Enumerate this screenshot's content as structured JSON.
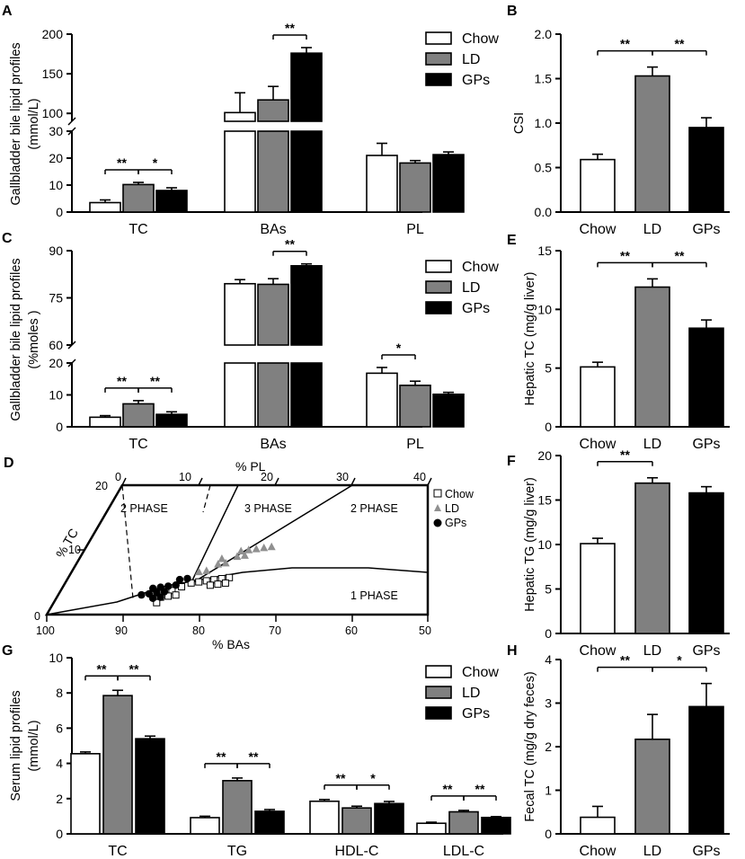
{
  "figure": {
    "legend": [
      "Chow",
      "LD",
      "GPs"
    ],
    "colors": {
      "Chow": "#ffffff",
      "LD": "#808080",
      "GPs": "#000000",
      "ink": "#000000"
    }
  },
  "chart_data": [
    {
      "panel": "A",
      "type": "bar",
      "broken_axis": true,
      "ylabel": [
        "Gallbladder bile lipid profiles",
        "(mmol/L)"
      ],
      "categories": [
        "TC",
        "BAs",
        "PL"
      ],
      "series": [
        {
          "name": "Chow",
          "values": [
            3.5,
            101,
            21
          ],
          "errors": [
            1,
            25,
            4.5
          ]
        },
        {
          "name": "LD",
          "values": [
            10.2,
            117,
            18.2
          ],
          "errors": [
            0.8,
            17,
            0.9
          ]
        },
        {
          "name": "GPs",
          "values": [
            8,
            176,
            21.3
          ],
          "errors": [
            1,
            7,
            1
          ]
        }
      ],
      "y_segments": [
        {
          "range": [
            0,
            30
          ],
          "ticks": [
            "0",
            "10",
            "20",
            "30"
          ]
        },
        {
          "range": [
            90,
            200
          ],
          "ticks": [
            "100",
            "150",
            "200"
          ]
        }
      ],
      "significance": [
        {
          "text": "**",
          "category": "TC",
          "between": [
            "Chow",
            "LD"
          ]
        },
        {
          "text": "*",
          "category": "TC",
          "between": [
            "LD",
            "GPs"
          ]
        },
        {
          "text": "**",
          "category": "BAs",
          "between": [
            "LD",
            "GPs"
          ]
        }
      ]
    },
    {
      "panel": "B",
      "type": "bar",
      "ylabel": [
        "CSI"
      ],
      "categories": [
        "Chow",
        "LD",
        "GPs"
      ],
      "values": [
        0.59,
        1.53,
        0.95
      ],
      "errors": [
        0.06,
        0.1,
        0.11
      ],
      "ylim": [
        0,
        2.0
      ],
      "yticks": [
        "0.0",
        "0.5",
        "1.0",
        "1.5",
        "2.0"
      ],
      "significance": [
        {
          "text": "**",
          "between": [
            "Chow",
            "LD"
          ]
        },
        {
          "text": "**",
          "between": [
            "LD",
            "GPs"
          ]
        }
      ]
    },
    {
      "panel": "C",
      "type": "bar",
      "broken_axis": true,
      "ylabel": [
        "Gallbladder bile lipid profiles",
        "(%moles )"
      ],
      "categories": [
        "TC",
        "BAs",
        "PL"
      ],
      "series": [
        {
          "name": "Chow",
          "values": [
            3,
            79.5,
            16.8
          ],
          "errors": [
            0.5,
            1.3,
            1.8
          ]
        },
        {
          "name": "LD",
          "values": [
            7.2,
            79.3,
            13
          ],
          "errors": [
            1,
            1.8,
            1.3
          ]
        },
        {
          "name": "GPs",
          "values": [
            3.9,
            85.2,
            10.2
          ],
          "errors": [
            0.8,
            0.6,
            0.6
          ]
        }
      ],
      "y_segments": [
        {
          "range": [
            0,
            20
          ],
          "ticks": [
            "0",
            "10",
            "20"
          ]
        },
        {
          "range": [
            60,
            90
          ],
          "ticks": [
            "60",
            "75",
            "90"
          ]
        }
      ],
      "significance": [
        {
          "text": "**",
          "category": "TC",
          "between": [
            "Chow",
            "LD"
          ]
        },
        {
          "text": "**",
          "category": "TC",
          "between": [
            "LD",
            "GPs"
          ]
        },
        {
          "text": "**",
          "category": "BAs",
          "between": [
            "LD",
            "GPs"
          ]
        },
        {
          "text": "*",
          "category": "PL",
          "between": [
            "Chow",
            "LD"
          ]
        }
      ]
    },
    {
      "panel": "E",
      "type": "bar",
      "ylabel": [
        "Hepatic TC (mg/g liver)"
      ],
      "categories": [
        "Chow",
        "LD",
        "GPs"
      ],
      "values": [
        5.1,
        11.9,
        8.4
      ],
      "errors": [
        0.4,
        0.7,
        0.7
      ],
      "ylim": [
        0,
        15
      ],
      "yticks": [
        "0",
        "5",
        "10",
        "15"
      ],
      "significance": [
        {
          "text": "**",
          "between": [
            "Chow",
            "LD"
          ]
        },
        {
          "text": "**",
          "between": [
            "LD",
            "GPs"
          ]
        }
      ]
    },
    {
      "panel": "D",
      "type": "scatter",
      "subtype": "ternary phase diagram",
      "axes": {
        "top": {
          "label": "% PL",
          "ticks": [
            "0",
            "10",
            "20",
            "30",
            "40"
          ]
        },
        "bottom": {
          "label": "% BAs",
          "ticks": [
            "100",
            "90",
            "80",
            "70",
            "60",
            "50"
          ]
        },
        "left": {
          "label": "% TC",
          "ticks": [
            "0",
            "10",
            "20"
          ]
        }
      },
      "regions": [
        "2 PHASE",
        "3 PHASE",
        "2 PHASE",
        "1 PHASE"
      ],
      "series": [
        {
          "name": "Chow",
          "marker": "open-square",
          "points": [
            [
              85,
              12,
              3
            ],
            [
              84,
              12.5,
              3.5
            ],
            [
              83,
              13,
              4
            ],
            [
              82,
              14,
              4
            ],
            [
              81,
              15,
              4
            ],
            [
              80,
              16,
              4
            ],
            [
              79,
              17,
              4
            ],
            [
              78,
              18,
              4
            ],
            [
              86,
              12,
              2
            ],
            [
              85,
              13,
              2
            ],
            [
              84,
              14,
              2
            ],
            [
              80,
              17,
              3
            ],
            [
              79,
              18,
              3
            ],
            [
              78,
              19,
              3
            ],
            [
              86,
              13,
              1
            ]
          ]
        },
        {
          "name": "LD",
          "marker": "gray-triangle",
          "points": [
            [
              83,
              11,
              6
            ],
            [
              82,
              12,
              6
            ],
            [
              81,
              12,
              7
            ],
            [
              80,
              13,
              7
            ],
            [
              79,
              13,
              8
            ],
            [
              78,
              14,
              8
            ],
            [
              81,
              11,
              8
            ],
            [
              79,
              12,
              9
            ],
            [
              78,
              13,
              9
            ],
            [
              77,
              14,
              9
            ],
            [
              76,
              15,
              9
            ],
            [
              75,
              16,
              9
            ]
          ]
        },
        {
          "name": "GPs",
          "marker": "filled-circle",
          "points": [
            [
              89,
              8,
              3
            ],
            [
              88,
              9,
              3
            ],
            [
              87,
              9,
              4
            ],
            [
              86,
              10,
              4
            ],
            [
              88,
              8,
              4
            ],
            [
              87,
              10,
              3
            ],
            [
              86,
              11,
              3
            ],
            [
              85,
              11,
              4
            ],
            [
              87,
              11,
              2
            ],
            [
              86,
              12,
              2
            ],
            [
              85,
              10,
              5
            ],
            [
              84,
              11,
              5
            ]
          ]
        }
      ],
      "legend_position": "top-right"
    },
    {
      "panel": "F",
      "type": "bar",
      "ylabel": [
        "Hepatic TG (mg/g liver)"
      ],
      "categories": [
        "Chow",
        "LD",
        "GPs"
      ],
      "values": [
        10.1,
        16.9,
        15.8
      ],
      "errors": [
        0.6,
        0.6,
        0.7
      ],
      "ylim": [
        0,
        20
      ],
      "yticks": [
        "0",
        "5",
        "10",
        "15",
        "20"
      ],
      "significance": [
        {
          "text": "**",
          "between": [
            "Chow",
            "LD"
          ]
        }
      ]
    },
    {
      "panel": "G",
      "type": "bar",
      "ylabel": [
        "Serum lipid profiles",
        "(mmol/L)"
      ],
      "categories": [
        "TC",
        "TG",
        "HDL-C",
        "LDL-C"
      ],
      "series": [
        {
          "name": "Chow",
          "values": [
            4.55,
            0.92,
            1.85,
            0.6
          ],
          "errors": [
            0.1,
            0.08,
            0.1,
            0.06
          ]
        },
        {
          "name": "LD",
          "values": [
            7.85,
            3.02,
            1.47,
            1.25
          ],
          "errors": [
            0.3,
            0.15,
            0.1,
            0.08
          ]
        },
        {
          "name": "GPs",
          "values": [
            5.4,
            1.28,
            1.72,
            0.93
          ],
          "errors": [
            0.15,
            0.1,
            0.12,
            0.05
          ]
        }
      ],
      "ylim": [
        0,
        10
      ],
      "yticks": [
        "0",
        "2",
        "4",
        "6",
        "8",
        "10"
      ],
      "significance": [
        {
          "text": "**",
          "category": "TC",
          "between": [
            "Chow",
            "LD"
          ]
        },
        {
          "text": "**",
          "category": "TC",
          "between": [
            "LD",
            "GPs"
          ]
        },
        {
          "text": "**",
          "category": "TG",
          "between": [
            "Chow",
            "LD"
          ]
        },
        {
          "text": "**",
          "category": "TG",
          "between": [
            "LD",
            "GPs"
          ]
        },
        {
          "text": "**",
          "category": "HDL-C",
          "between": [
            "Chow",
            "LD"
          ]
        },
        {
          "text": "*",
          "category": "HDL-C",
          "between": [
            "LD",
            "GPs"
          ]
        },
        {
          "text": "**",
          "category": "LDL-C",
          "between": [
            "Chow",
            "LD"
          ]
        },
        {
          "text": "**",
          "category": "LDL-C",
          "between": [
            "LD",
            "GPs"
          ]
        }
      ]
    },
    {
      "panel": "H",
      "type": "bar",
      "ylabel": [
        "Fecal TC (mg/g dry feces)"
      ],
      "categories": [
        "Chow",
        "LD",
        "GPs"
      ],
      "values": [
        0.38,
        2.17,
        2.92
      ],
      "errors": [
        0.25,
        0.57,
        0.53
      ],
      "ylim": [
        0,
        4
      ],
      "yticks": [
        "0",
        "1",
        "2",
        "3",
        "4"
      ],
      "significance": [
        {
          "text": "**",
          "between": [
            "Chow",
            "LD"
          ]
        },
        {
          "text": "*",
          "between": [
            "LD",
            "GPs"
          ]
        }
      ]
    }
  ]
}
